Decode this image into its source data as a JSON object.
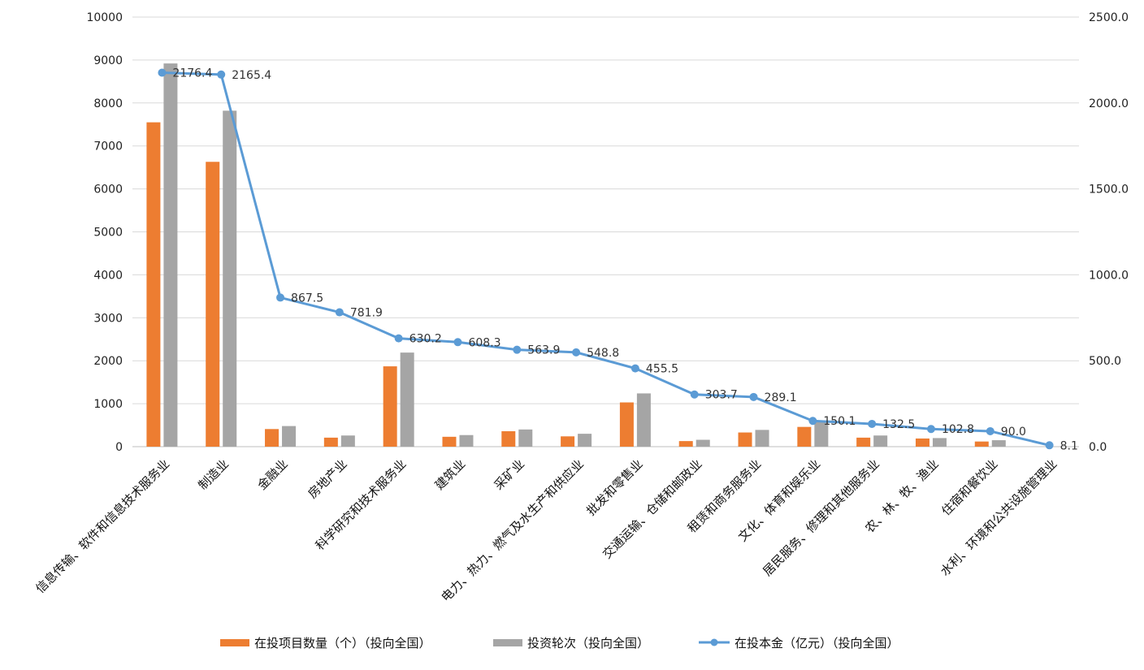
{
  "chart_data": {
    "type": "bar",
    "categories": [
      "信息传输、软件和信息技术服务业",
      "制造业",
      "金融业",
      "房地产业",
      "科学研究和技术服务业",
      "建筑业",
      "采矿业",
      "电力、热力、燃气及水生产和供应业",
      "批发和零售业",
      "交通运输、仓储和邮政业",
      "租赁和商务服务业",
      "文化、体育和娱乐业",
      "居民服务、修理和其他服务业",
      "农、林、牧、渔业",
      "住宿和餐饮业",
      "水利、环境和公共设施管理业"
    ],
    "series": [
      {
        "name": "在投项目数量（个）（投向全国）",
        "type": "bar",
        "axis": "left",
        "color": "#ED7D31",
        "values": [
          7550,
          6630,
          410,
          210,
          1870,
          230,
          360,
          240,
          1030,
          130,
          330,
          460,
          210,
          190,
          120,
          0
        ]
      },
      {
        "name": "投资轮次（投向全国）",
        "type": "bar",
        "axis": "left",
        "color": "#A5A5A5",
        "values": [
          8920,
          7820,
          480,
          260,
          2190,
          270,
          400,
          300,
          1240,
          160,
          390,
          590,
          260,
          200,
          150,
          0
        ]
      },
      {
        "name": "在投本金（亿元）（投向全国）",
        "type": "line",
        "axis": "right",
        "color": "#5B9BD5",
        "values": [
          2176.4,
          2165.4,
          867.5,
          781.9,
          630.2,
          608.3,
          563.9,
          548.8,
          455.5,
          303.7,
          289.1,
          150.1,
          132.5,
          102.8,
          90.0,
          8.1
        ],
        "labels": [
          "2176.4",
          "2165.4",
          "867.5",
          "781.9",
          "630.2",
          "608.3",
          "563.9",
          "548.8",
          "455.5",
          "303.7",
          "289.1",
          "150.1",
          "132.5",
          "102.8",
          "90.0",
          "8.1"
        ]
      }
    ],
    "y_left": {
      "ylim": [
        0,
        10000
      ],
      "ticks": [
        "0",
        "1000",
        "2000",
        "3000",
        "4000",
        "5000",
        "6000",
        "7000",
        "8000",
        "9000",
        "10000"
      ]
    },
    "y_right": {
      "ylim": [
        0,
        2500
      ],
      "ticks": [
        "0.0",
        "500.0",
        "1000.0",
        "1500.0",
        "2000.0",
        "2500.0"
      ]
    },
    "grid": true,
    "legend": "bottom"
  }
}
